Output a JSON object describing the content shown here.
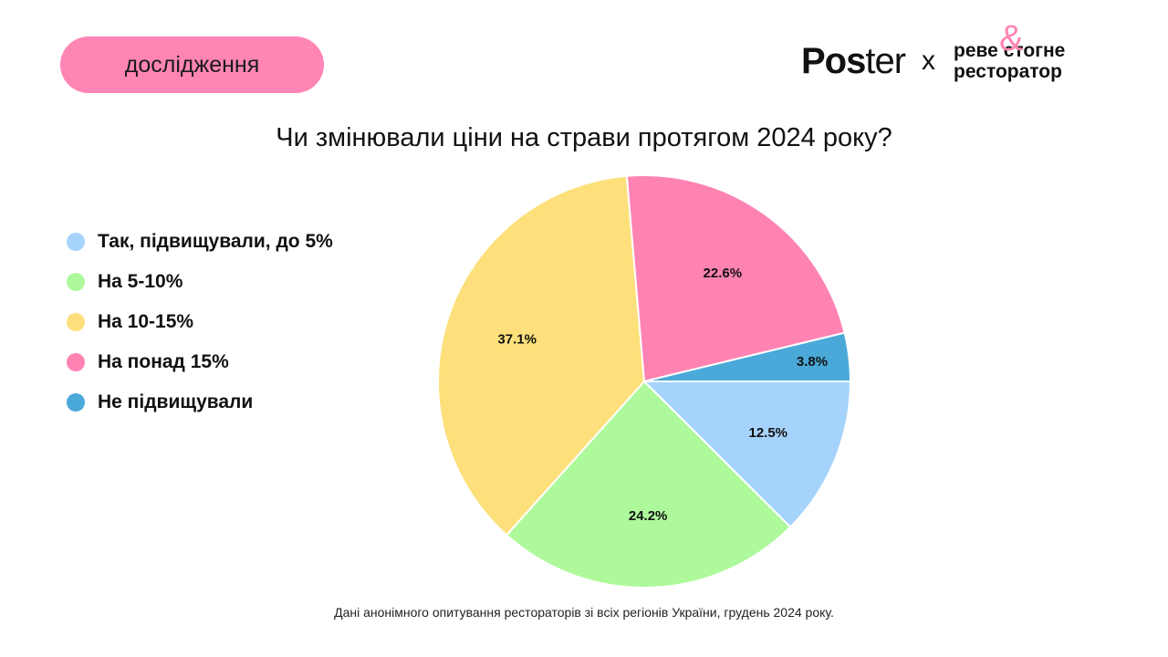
{
  "tag": {
    "label": "дослідження"
  },
  "brand": {
    "logo_left_bold": "Pos",
    "logo_left_rest": "ter",
    "separator": "x",
    "partner_line1": "реве стогне",
    "partner_line2": "ресторатор",
    "partner_symbol": "&"
  },
  "legend": {
    "items": [
      {
        "label": "Так, підвищували, до 5%",
        "color": "#a6d3fb"
      },
      {
        "label": "На 5-10%",
        "color": "#aef99b"
      },
      {
        "label": "На 10-15%",
        "color": "#fde07b"
      },
      {
        "label": "На понад 15%",
        "color": "#fe83b3"
      },
      {
        "label": "Не підвищували",
        "color": "#4aa9d8"
      }
    ]
  },
  "footer": {
    "text": "Дані анонімного опитування рестораторів зі всіх регіонів України, грудень 2024 року."
  },
  "chart_data": {
    "type": "pie",
    "title": "Чи змінювали ціни на страви протягом 2024 року?",
    "slices": [
      {
        "label": "Так, підвищували, до 5%",
        "value": 12.5,
        "display": "12.5%",
        "color": "#a6d3fb"
      },
      {
        "label": "На 5-10%",
        "value": 24.2,
        "display": "24.2%",
        "color": "#aef99b"
      },
      {
        "label": "На 10-15%",
        "value": 37.1,
        "display": "37.1%",
        "color": "#fde07b"
      },
      {
        "label": "На понад 15%",
        "value": 22.6,
        "display": "22.6%",
        "color": "#fe83b3"
      },
      {
        "label": "Не підвищували",
        "value": 3.8,
        "display": "3.8%",
        "color": "#4aa9d8"
      }
    ],
    "start_position": "3 o'clock",
    "direction": "clockwise",
    "legend_position": "left"
  }
}
